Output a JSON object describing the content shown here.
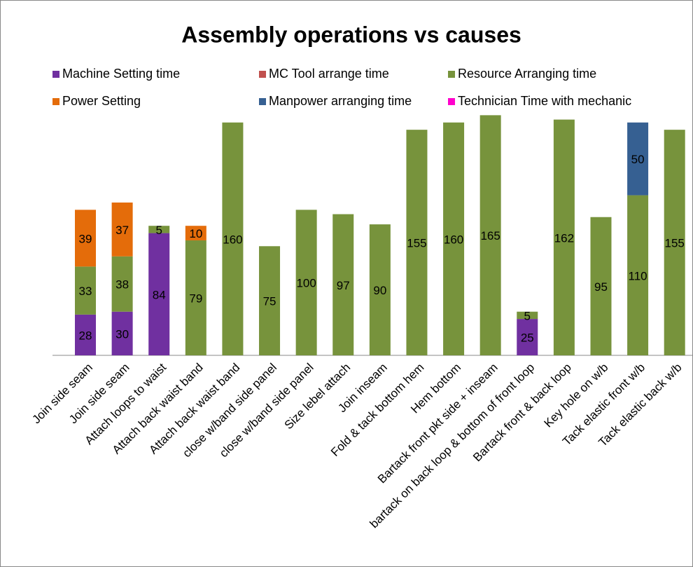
{
  "chart_data": {
    "type": "stacked_bar",
    "title": "Assembly operations vs causes",
    "categories": [
      "Join side seam",
      "Join side seam",
      "Attach loops to waist",
      "Attach back waist band",
      "Attach back waist band",
      "close w/band side panel",
      "close w/band side panel",
      "Size lebel attach",
      "Join inseam",
      "Fold & tack bottom hem",
      "Hem bottom",
      "Bartack front pkt side + inseam",
      "bartack on back loop & bottom of front loop",
      "Bartack front & back loop",
      "Key hole on w/b",
      "Tack elastic front w/b",
      "Tack elastic back w/b"
    ],
    "series": [
      {
        "name": "Machine Setting time",
        "color": "#7030a0",
        "values": [
          28,
          30,
          84,
          null,
          null,
          null,
          null,
          null,
          null,
          null,
          null,
          null,
          25,
          null,
          null,
          null,
          null
        ]
      },
      {
        "name": "MC Tool arrange time",
        "color": "#c0504d",
        "values": [
          null,
          null,
          null,
          null,
          null,
          null,
          null,
          null,
          null,
          null,
          null,
          null,
          null,
          null,
          null,
          null,
          null
        ]
      },
      {
        "name": "Resource Arranging time",
        "color": "#77933c",
        "values": [
          33,
          38,
          5,
          79,
          160,
          75,
          100,
          97,
          90,
          155,
          160,
          165,
          5,
          162,
          95,
          110,
          155
        ]
      },
      {
        "name": "Power Setting",
        "color": "#e46c0a",
        "values": [
          39,
          37,
          null,
          10,
          null,
          null,
          null,
          null,
          null,
          null,
          null,
          null,
          null,
          null,
          null,
          null,
          null
        ]
      },
      {
        "name": "Manpower arranging time",
        "color": "#366092",
        "values": [
          null,
          null,
          null,
          null,
          null,
          null,
          null,
          null,
          null,
          null,
          null,
          null,
          null,
          null,
          null,
          50,
          null
        ]
      },
      {
        "name": "Technician Time with mechanic",
        "color": "#ff00cc",
        "values": [
          null,
          null,
          null,
          null,
          null,
          null,
          null,
          null,
          null,
          null,
          null,
          null,
          null,
          null,
          null,
          null,
          null
        ]
      }
    ],
    "ylim": [
      0,
      170
    ],
    "legend": "top"
  }
}
